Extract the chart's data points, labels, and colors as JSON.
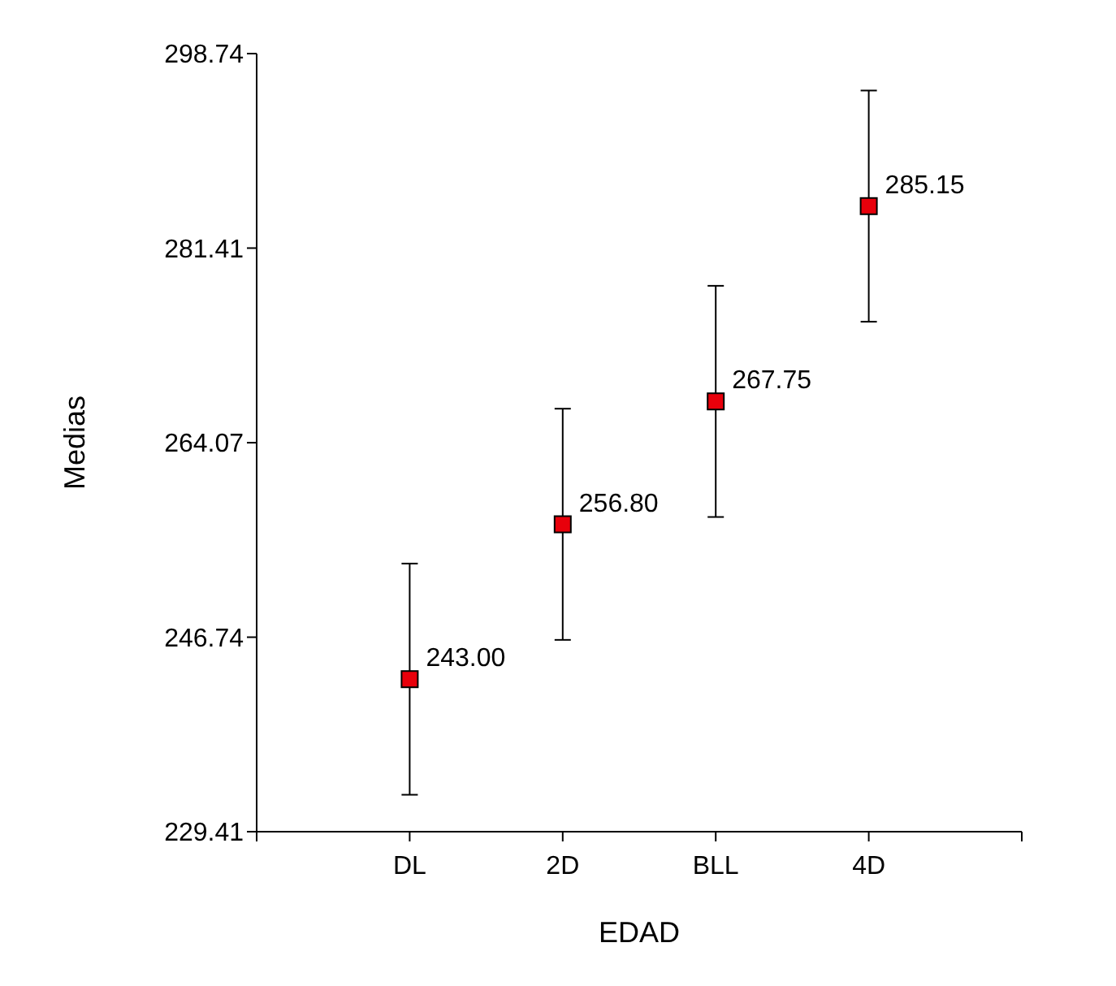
{
  "chart_data": {
    "type": "scatter",
    "xlabel": "EDAD",
    "ylabel": "Medias",
    "categories": [
      "DL",
      "2D",
      "BLL",
      "4D"
    ],
    "series": [
      {
        "color": "#e8000b",
        "values": [
          243.0,
          256.8,
          267.75,
          285.15
        ],
        "errors": [
          10.3,
          10.3,
          10.3,
          10.3
        ],
        "value_labels": [
          "243.00",
          "256.80",
          "267.75",
          "285.15"
        ]
      }
    ],
    "ylim": [
      229.41,
      298.74
    ],
    "yticks": [
      229.41,
      246.74,
      264.07,
      281.41,
      298.74
    ],
    "marker": "square",
    "grid": false
  }
}
